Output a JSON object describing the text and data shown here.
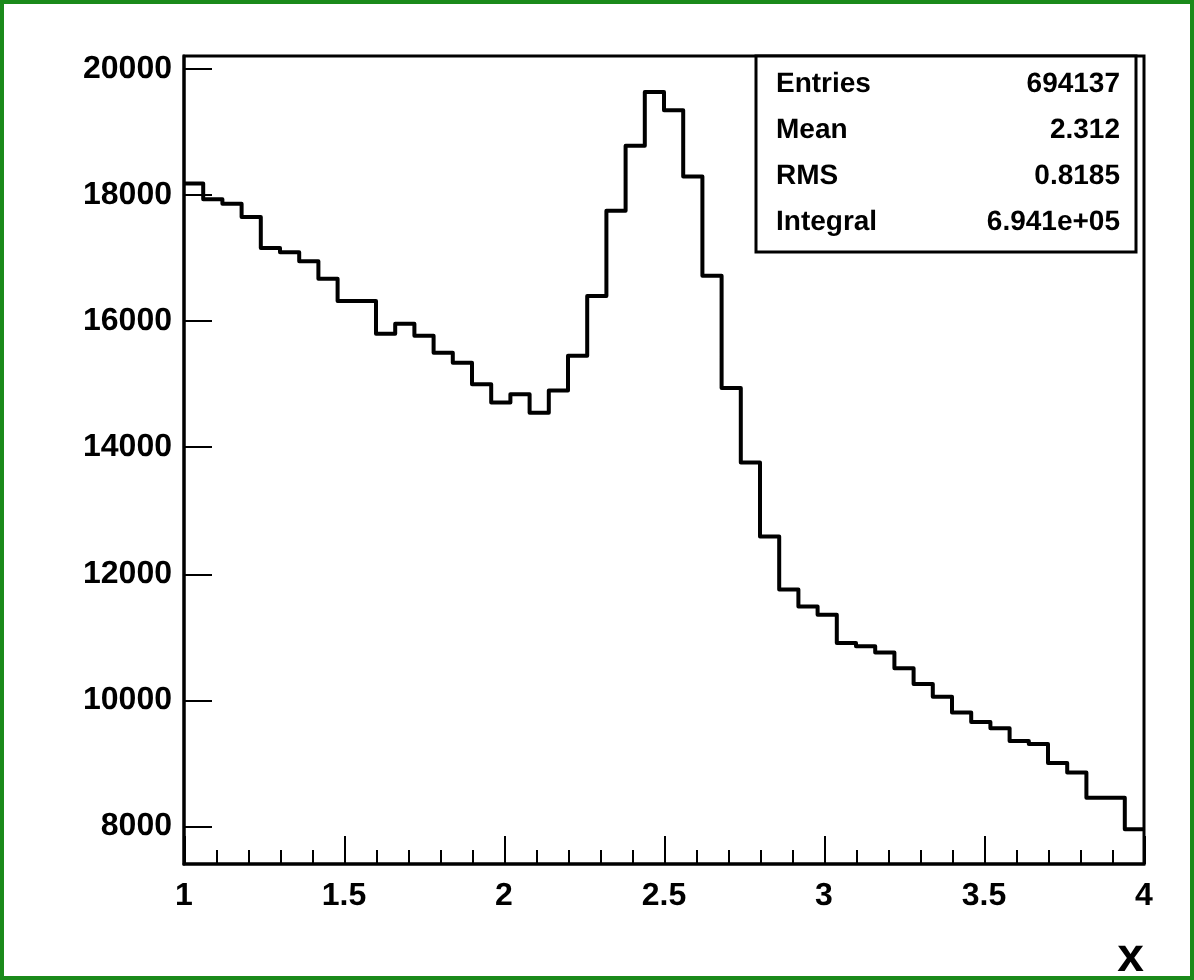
{
  "chart_data": {
    "type": "histogram",
    "xlabel": "x",
    "bins": [
      1,
      1.06,
      1.12,
      1.18,
      1.24,
      1.3,
      1.36,
      1.42,
      1.48,
      1.54,
      1.6,
      1.66,
      1.72,
      1.78,
      1.84,
      1.9,
      1.96,
      2.02,
      2.08,
      2.14,
      2.2,
      2.26,
      2.32,
      2.38,
      2.44,
      2.5,
      2.56,
      2.62,
      2.68,
      2.74,
      2.8,
      2.86,
      2.92,
      2.98,
      3.04,
      3.1,
      3.16,
      3.22,
      3.28,
      3.34,
      3.4,
      3.46,
      3.52,
      3.58,
      3.64,
      3.7,
      3.76,
      3.82,
      3.88,
      3.94,
      4
    ],
    "values": [
      18180,
      17930,
      17860,
      17650,
      17160,
      17090,
      16950,
      16670,
      16320,
      16320,
      15800,
      15960,
      15770,
      15500,
      15340,
      15000,
      14710,
      14840,
      14550,
      14900,
      15450,
      16400,
      17750,
      18780,
      19630,
      19340,
      18290,
      16720,
      14940,
      13760,
      12590,
      11750,
      11480,
      11350,
      10900,
      10850,
      10750,
      10500,
      10250,
      10050,
      9800,
      9650,
      9550,
      9350,
      9300,
      9000,
      8850,
      8450,
      8450,
      7950
    ],
    "color": "#000000",
    "xlim": [
      1,
      4
    ],
    "xticks": [
      1,
      1.5,
      2,
      2.5,
      3,
      3.5,
      4
    ],
    "ylim": [
      7400,
      20200
    ],
    "yticks": [
      8000,
      10000,
      12000,
      14000,
      16000,
      18000,
      20000
    ],
    "grid": false,
    "annotations": [
      "Entries 694137",
      "Mean 2.312",
      "RMS 0.8185",
      "Integral 6.941e+05"
    ]
  }
}
